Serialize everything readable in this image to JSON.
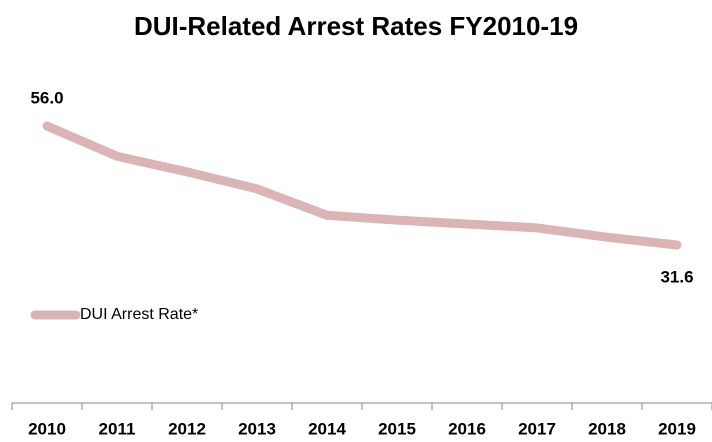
{
  "chart_data": {
    "type": "line",
    "title": "DUI-Related Arrest Rates FY2010-19",
    "categories": [
      "2010",
      "2011",
      "2012",
      "2013",
      "2014",
      "2015",
      "2016",
      "2017",
      "2018",
      "2019"
    ],
    "series": [
      {
        "name": "DUI Arrest Rate*",
        "color": "#dbb5b5",
        "values": [
          56.0,
          49.8,
          46.6,
          43.1,
          37.7,
          36.7,
          35.9,
          35.1,
          33.2,
          31.6
        ],
        "value_labels": [
          "56.0",
          null,
          null,
          null,
          null,
          null,
          null,
          null,
          null,
          "31.6"
        ]
      }
    ],
    "legend": "left"
  }
}
